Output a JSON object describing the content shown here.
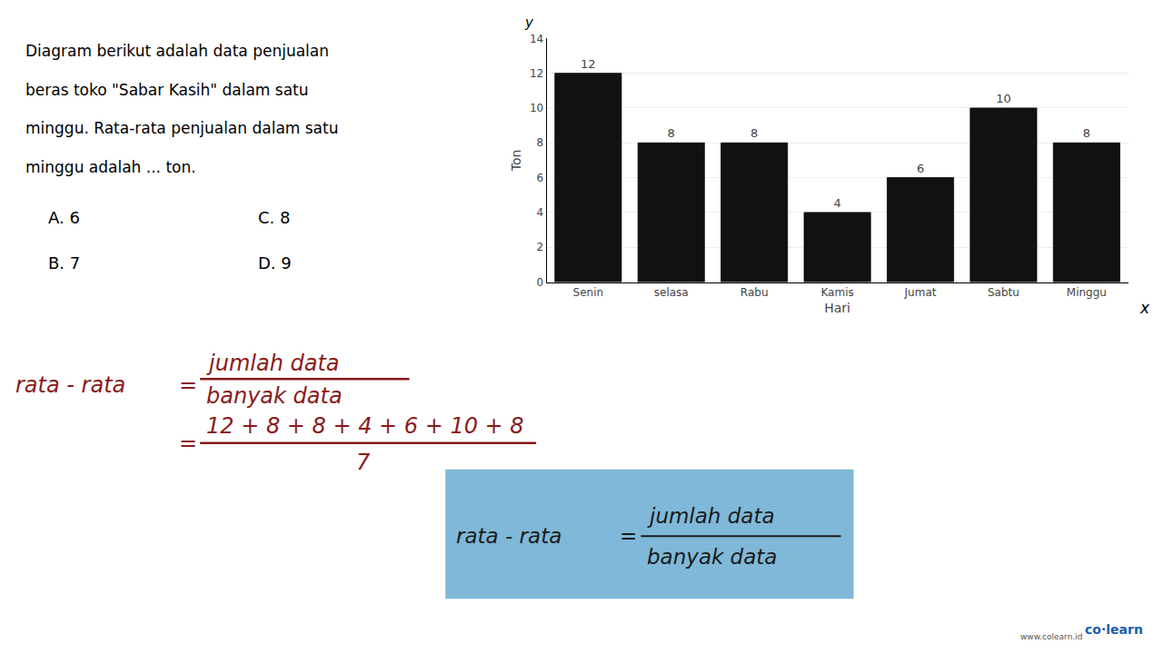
{
  "chart_data": {
    "type": "bar",
    "categories": [
      "Senin",
      "selasa",
      "Rabu",
      "Kamis",
      "Jumat",
      "Sabtu",
      "Minggu"
    ],
    "values": [
      12,
      8,
      8,
      4,
      6,
      10,
      8
    ],
    "color": "#111111",
    "xlabel": "Hari",
    "ylabel": "Ton",
    "ylim": [
      0,
      14
    ],
    "yticks": [
      0,
      2,
      4,
      6,
      8,
      10,
      12,
      14
    ],
    "grid": true,
    "data_labels": true,
    "annotations": [
      "Diagram berikut adalah data penjualan",
      "beras toko \"Sabar Kasih\" dalam satu",
      "minggu. Rata-rata penjualan dalam satu",
      "minggu adalah ... ton.",
      "A. 6",
      "C. 8",
      "B. 7",
      "D. 9",
      "y",
      "x",
      "rata - rata",
      "=",
      "jumlah data",
      "banyak data",
      "=",
      "12 + 8 + 8 + 4 + 6 + 10 + 8",
      "7",
      "rata - rata",
      "=",
      "jumlah data",
      "banyak data",
      "co·learn",
      "www.colearn.id"
    ]
  }
}
